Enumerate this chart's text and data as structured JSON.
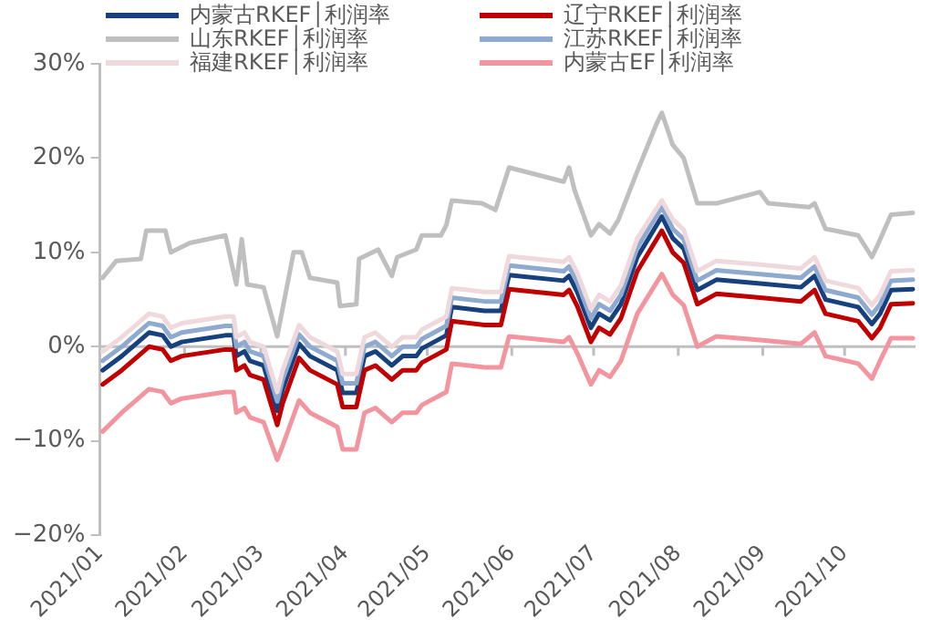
{
  "chart_data": {
    "type": "line",
    "x": [
      "2021-01-02",
      "2021-01-09",
      "2021-01-19",
      "2021-01-24",
      "2021-01-27",
      "2021-01-31",
      "2021-02-16",
      "2021-02-19",
      "2021-02-20",
      "2021-02-23",
      "2021-02-25",
      "2021-03-02",
      "2021-03-07",
      "2021-03-09",
      "2021-03-15",
      "2021-03-19",
      "2021-03-29",
      "2021-03-31",
      "2021-04-05",
      "2021-04-08",
      "2021-04-12",
      "2021-04-18",
      "2021-04-22",
      "2021-04-27",
      "2021-04-29",
      "2021-05-08",
      "2021-05-10",
      "2021-05-22",
      "2021-05-28",
      "2021-05-31",
      "2021-06-20",
      "2021-06-22",
      "2021-06-25",
      "2021-06-30",
      "2021-07-03",
      "2021-07-07",
      "2021-07-11",
      "2021-07-17",
      "2021-07-26",
      "2021-07-30",
      "2021-08-03",
      "2021-08-08",
      "2021-08-15",
      "2021-08-31",
      "2021-09-15",
      "2021-09-20",
      "2021-09-24",
      "2021-10-06",
      "2021-10-11",
      "2021-10-14",
      "2021-10-18",
      "2021-10-26"
    ],
    "series": [
      {
        "name": "内蒙古RKEF│利润率",
        "color": "#17407e",
        "values": [
          -2.5,
          -1,
          1.5,
          1.2,
          0,
          0.5,
          1.2,
          1.2,
          -1,
          -0.5,
          -1.5,
          -2,
          -6.8,
          -4.5,
          0.3,
          -1,
          -2.5,
          -4.9,
          -4.9,
          -1,
          -0.5,
          -2,
          -1,
          -1,
          -0.2,
          1.2,
          4.2,
          3.8,
          3.8,
          7.6,
          7,
          7.5,
          5.8,
          2,
          3.5,
          2.8,
          4.5,
          9.5,
          13.8,
          11.5,
          10.4,
          6,
          7.1,
          6.7,
          6.3,
          7.5,
          5,
          4.2,
          2.4,
          3.5,
          6,
          6.1
        ]
      },
      {
        "name": "辽宁RKEF│利润率",
        "color": "#c00000",
        "values": [
          -4,
          -2.5,
          0,
          -0.3,
          -1.5,
          -1,
          -0.3,
          -0.3,
          -2.5,
          -2,
          -3,
          -3.5,
          -8.3,
          -6,
          -1.2,
          -2.5,
          -4,
          -6.4,
          -6.4,
          -2.5,
          -2,
          -3.5,
          -2.5,
          -2.5,
          -1.7,
          -0.3,
          2.7,
          2.3,
          2.3,
          6.1,
          5.5,
          6,
          4.3,
          0.5,
          2,
          1.3,
          3,
          8,
          12.3,
          10,
          8.9,
          4.5,
          5.6,
          5.2,
          4.8,
          6,
          3.5,
          2.7,
          0.9,
          2,
          4.5,
          4.6
        ]
      },
      {
        "name": "山东RKEF│利润率",
        "color": "#bfbfbf",
        "x": [
          "2021-01-02",
          "2021-01-07",
          "2021-01-16",
          "2021-01-18",
          "2021-01-25",
          "2021-01-27",
          "2021-02-03",
          "2021-02-16",
          "2021-02-20",
          "2021-02-22",
          "2021-02-24",
          "2021-03-02",
          "2021-03-07",
          "2021-03-13",
          "2021-03-16",
          "2021-03-19",
          "2021-03-29",
          "2021-03-30",
          "2021-04-05",
          "2021-04-06",
          "2021-04-13",
          "2021-04-18",
          "2021-04-20",
          "2021-04-27",
          "2021-04-29",
          "2021-05-06",
          "2021-05-08",
          "2021-05-10",
          "2021-05-21",
          "2021-05-26",
          "2021-05-31",
          "2021-06-20",
          "2021-06-22",
          "2021-06-24",
          "2021-06-30",
          "2021-07-03",
          "2021-07-07",
          "2021-07-10",
          "2021-07-17",
          "2021-07-24",
          "2021-07-26",
          "2021-07-30",
          "2021-08-03",
          "2021-08-08",
          "2021-08-15",
          "2021-08-31",
          "2021-09-03",
          "2021-09-18",
          "2021-09-20",
          "2021-09-24",
          "2021-10-06",
          "2021-10-11",
          "2021-10-13",
          "2021-10-18",
          "2021-10-26"
        ],
        "values": [
          7.3,
          9.1,
          9.3,
          12.3,
          12.3,
          10,
          11,
          11.8,
          6.6,
          11.4,
          6.6,
          6.3,
          1.1,
          10,
          10,
          7.3,
          6.8,
          4.3,
          4.5,
          9.3,
          10.3,
          7.5,
          9.5,
          10.3,
          11.8,
          11.8,
          12.9,
          15.5,
          15.2,
          14.5,
          19,
          17.5,
          19,
          16.6,
          11.8,
          13,
          12,
          13.4,
          18.6,
          23.6,
          24.8,
          21.4,
          20,
          15.2,
          15.2,
          16.4,
          15.2,
          14.8,
          15.2,
          12.5,
          11.8,
          9.5,
          10.7,
          14,
          14.2
        ]
      },
      {
        "name": "江苏RKEF│利润率",
        "color": "#8eaacf",
        "values": [
          -1.5,
          0,
          2.5,
          2.2,
          1,
          1.5,
          2.2,
          2.2,
          0,
          0.5,
          -0.5,
          -1,
          -5.8,
          -3.5,
          1.3,
          0,
          -1.5,
          -3.9,
          -3.9,
          0,
          0.5,
          -1,
          0,
          0,
          0.8,
          2.2,
          5.2,
          4.8,
          4.8,
          8.6,
          8,
          8.5,
          6.8,
          3,
          4.5,
          3.8,
          5.5,
          10.5,
          14.8,
          12.5,
          11.4,
          7,
          8.1,
          7.7,
          7.3,
          8.5,
          6,
          5.2,
          3.4,
          4.5,
          7,
          7.1
        ]
      },
      {
        "name": "福建RKEF│利润率",
        "color": "#efd9dc",
        "values": [
          -0.5,
          1,
          3.5,
          3.2,
          2,
          2.5,
          3.2,
          3.2,
          1,
          1.5,
          0.5,
          0,
          -4.8,
          -2.5,
          2.3,
          1,
          -0.5,
          -2.9,
          -2.9,
          1,
          1.5,
          0,
          1,
          1,
          1.8,
          3.2,
          6.2,
          5.8,
          5.8,
          9.6,
          9,
          9.5,
          7.8,
          4,
          5.5,
          4.8,
          6.5,
          11.5,
          15.5,
          13.5,
          12.4,
          8,
          9.1,
          8.7,
          8.3,
          9.5,
          7,
          6.2,
          4.4,
          5.5,
          8,
          8.1
        ]
      },
      {
        "name": "内蒙古EF│利润率",
        "color": "#f2959f",
        "values": [
          -9,
          -7,
          -4.5,
          -4.8,
          -6,
          -5.5,
          -4.8,
          -4.8,
          -7,
          -6.5,
          -7.5,
          -8,
          -12,
          -10.5,
          -5.7,
          -7,
          -8.5,
          -10.9,
          -10.9,
          -7,
          -6.5,
          -8,
          -7,
          -7,
          -6.2,
          -4.8,
          -1.8,
          -2.2,
          -2.2,
          1.1,
          0.5,
          1,
          -0.7,
          -4,
          -2.5,
          -3.2,
          -1.5,
          3.5,
          7.7,
          5.5,
          4.4,
          0,
          1.1,
          0.7,
          0.3,
          1.5,
          -1,
          -1.8,
          -3.4,
          -1.5,
          0.9,
          0.9
        ]
      }
    ],
    "xlim": [
      "2021-01-01",
      "2021-10-27"
    ],
    "xticks": [
      {
        "value": "2021-01-01",
        "label": "2021/01"
      },
      {
        "value": "2021-02-01",
        "label": "2021/02"
      },
      {
        "value": "2021-03-01",
        "label": "2021/03"
      },
      {
        "value": "2021-04-01",
        "label": "2021/04"
      },
      {
        "value": "2021-05-01",
        "label": "2021/05"
      },
      {
        "value": "2021-06-01",
        "label": "2021/06"
      },
      {
        "value": "2021-07-01",
        "label": "2021/07"
      },
      {
        "value": "2021-08-01",
        "label": "2021/08"
      },
      {
        "value": "2021-09-01",
        "label": "2021/09"
      },
      {
        "value": "2021-10-01",
        "label": "2021/10"
      }
    ],
    "ylim": [
      -20,
      30
    ],
    "yticks": [
      {
        "value": -20,
        "label": "−20%"
      },
      {
        "value": -10,
        "label": "−10%"
      },
      {
        "value": 0,
        "label": "0%"
      },
      {
        "value": 10,
        "label": "10%"
      },
      {
        "value": 20,
        "label": "20%"
      },
      {
        "value": 30,
        "label": "30%"
      }
    ],
    "ref_lines": [
      {
        "axis": "y",
        "value": 0,
        "color": "#bfbfbf"
      }
    ],
    "grid": false,
    "legend": "top",
    "marker": "none",
    "line_style": "solid"
  }
}
